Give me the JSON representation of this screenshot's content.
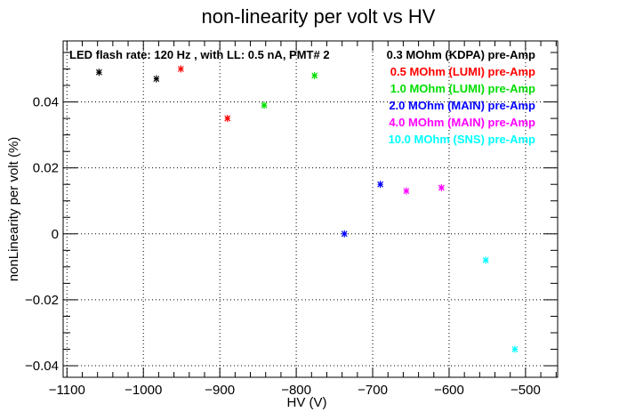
{
  "chart_data": {
    "type": "scatter",
    "title": "non-linearity per volt vs HV",
    "xlabel": "HV (V)",
    "ylabel": "nonLinearity per volt (%)",
    "annotation": "LED flash rate: 120 Hz , with LL: 0.5 nA, PMT# 2",
    "xlim": [
      -1105,
      -458
    ],
    "ylim": [
      -0.0435,
      0.0585
    ],
    "grid": true,
    "legend_position": "top-right",
    "x_ticks": [
      -1100,
      -1000,
      -900,
      -800,
      -700,
      -600,
      -500
    ],
    "x_tick_labels": [
      "−1100",
      "−1000",
      "−900",
      "−800",
      "−700",
      "−600",
      "−500"
    ],
    "y_ticks": [
      -0.04,
      -0.02,
      0,
      0.02,
      0.04
    ],
    "y_tick_labels": [
      "−0.04",
      "−0.02",
      "0",
      "0.02",
      "0.04"
    ],
    "series": [
      {
        "name": "0.3 MOhm (KDPA) pre-Amp",
        "color": "#000000",
        "x": [
          -1058,
          -983
        ],
        "y": [
          0.049,
          0.047
        ]
      },
      {
        "name": "0.5 MOhm (LUMI) pre-Amp",
        "color": "#ff0000",
        "x": [
          -951,
          -890
        ],
        "y": [
          0.05,
          0.035
        ]
      },
      {
        "name": "1.0 MOhm (LUMI) pre-Amp",
        "color": "#00dd00",
        "x": [
          -842,
          -776
        ],
        "y": [
          0.039,
          0.048
        ]
      },
      {
        "name": "2.0 MOhm (MAIN) pre-Amp",
        "color": "#0000ff",
        "x": [
          -737,
          -690
        ],
        "y": [
          0.0,
          0.015
        ]
      },
      {
        "name": "4.0 MOhm (MAIN) pre-Amp",
        "color": "#ff00ff",
        "x": [
          -656,
          -610
        ],
        "y": [
          0.013,
          0.014
        ]
      },
      {
        "name": "10.0 MOhm (SNS) pre-Amp",
        "color": "#00ffff",
        "x": [
          -552,
          -514
        ],
        "y": [
          -0.008,
          -0.035
        ]
      }
    ]
  }
}
